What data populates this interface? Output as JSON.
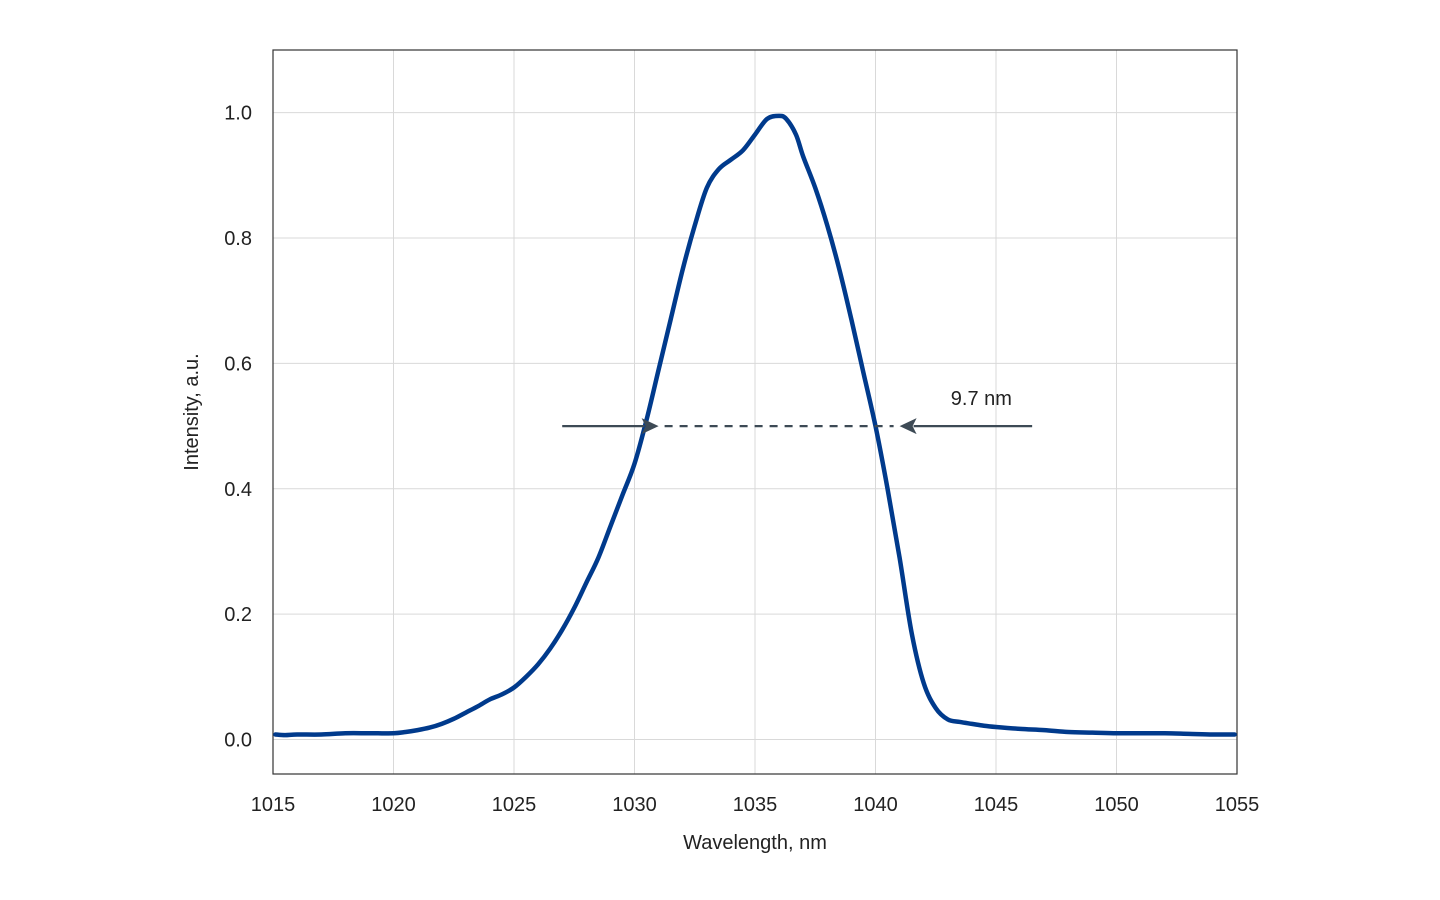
{
  "chart_data": {
    "type": "line",
    "title": "",
    "xlabel": "Wavelength, nm",
    "ylabel": "Intensity, a.u.",
    "xlim": [
      1015,
      1055
    ],
    "ylim": [
      -0.055,
      1.1
    ],
    "xticks": [
      1015,
      1020,
      1025,
      1030,
      1035,
      1040,
      1045,
      1050,
      1055
    ],
    "xtick_labels": [
      "1015",
      "1020",
      "1025",
      "1030",
      "1035",
      "1040",
      "1045",
      "1050",
      "1055"
    ],
    "yticks": [
      0.0,
      0.2,
      0.4,
      0.6,
      0.8,
      1.0
    ],
    "ytick_labels": [
      "0.0",
      "0.2",
      "0.4",
      "0.6",
      "0.8",
      "1.0"
    ],
    "grid": true,
    "legend": "none",
    "series": [
      {
        "color": "#003a8c",
        "x": [
          1015.1,
          1015.5,
          1016.0,
          1017.0,
          1018.0,
          1019.0,
          1020.0,
          1020.5,
          1021.0,
          1021.5,
          1022.0,
          1022.5,
          1023.0,
          1023.5,
          1024.0,
          1024.5,
          1025.0,
          1025.5,
          1026.0,
          1026.5,
          1027.0,
          1027.5,
          1028.0,
          1028.5,
          1029.0,
          1029.5,
          1030.0,
          1030.5,
          1031.0,
          1031.5,
          1032.0,
          1032.5,
          1033.0,
          1033.5,
          1034.0,
          1034.5,
          1035.0,
          1035.5,
          1036.0,
          1036.3,
          1036.7,
          1037.0,
          1037.5,
          1038.0,
          1038.5,
          1039.0,
          1039.5,
          1040.0,
          1040.5,
          1041.0,
          1041.5,
          1042.0,
          1042.5,
          1043.0,
          1043.5,
          1044.0,
          1044.5,
          1045.0,
          1046.0,
          1047.0,
          1048.0,
          1049.0,
          1050.0,
          1051.0,
          1052.0,
          1053.0,
          1054.0,
          1054.9
        ],
        "y": [
          0.008,
          0.007,
          0.008,
          0.008,
          0.01,
          0.01,
          0.01,
          0.012,
          0.015,
          0.019,
          0.025,
          0.033,
          0.043,
          0.053,
          0.064,
          0.072,
          0.083,
          0.1,
          0.12,
          0.145,
          0.175,
          0.21,
          0.25,
          0.29,
          0.34,
          0.39,
          0.44,
          0.51,
          0.59,
          0.67,
          0.75,
          0.82,
          0.88,
          0.91,
          0.925,
          0.94,
          0.965,
          0.99,
          0.995,
          0.99,
          0.965,
          0.93,
          0.88,
          0.82,
          0.75,
          0.67,
          0.585,
          0.5,
          0.4,
          0.29,
          0.17,
          0.09,
          0.05,
          0.032,
          0.028,
          0.025,
          0.022,
          0.02,
          0.017,
          0.015,
          0.012,
          0.011,
          0.01,
          0.01,
          0.01,
          0.009,
          0.008,
          0.008
        ]
      }
    ],
    "annotations": [
      {
        "type": "fwhm",
        "text": "9.7 nm",
        "y": 0.5,
        "x_left": 1031.0,
        "x_right": 1041.0,
        "arrow_from_left": 1027.0,
        "arrow_from_right": 1046.5,
        "text_x": 1043.0,
        "color": "#3d4a55"
      }
    ]
  }
}
